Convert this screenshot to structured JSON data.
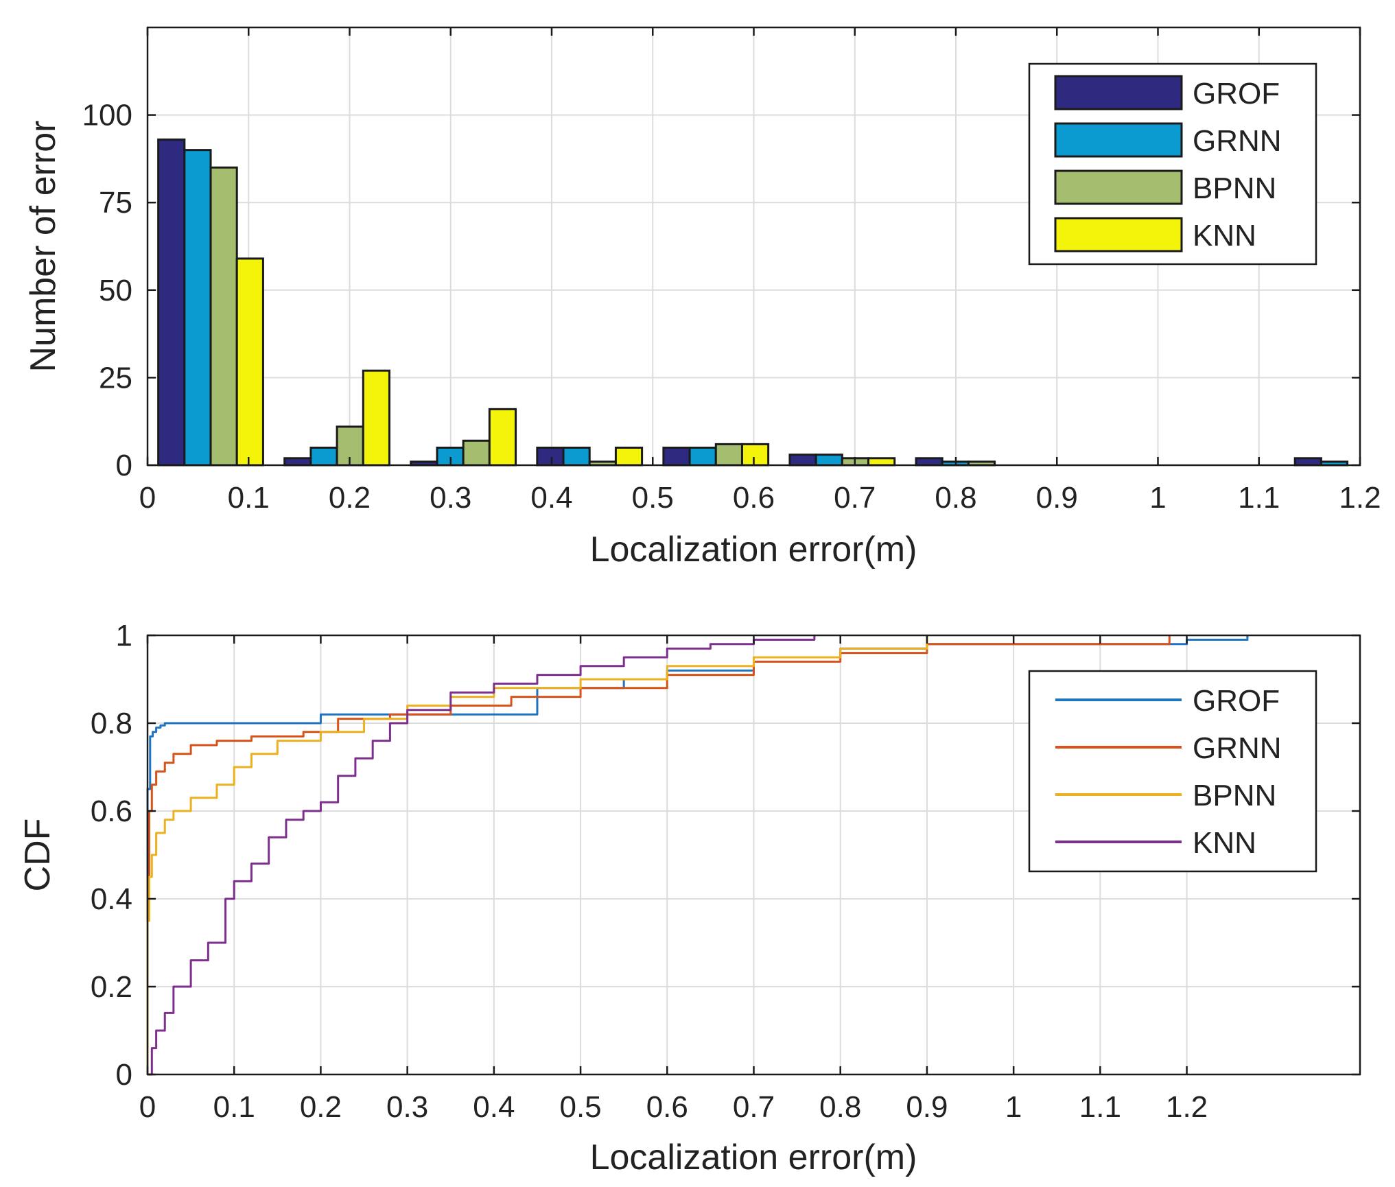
{
  "chart_data": [
    {
      "type": "bar",
      "title": "",
      "xlabel": "Localization error(m)",
      "ylabel": "Number of error",
      "xlim": [
        0,
        1.2
      ],
      "ylim": [
        0,
        125
      ],
      "xticks": [
        "0",
        "0.1",
        "0.2",
        "0.3",
        "0.4",
        "0.5",
        "0.6",
        "0.7",
        "0.8",
        "0.9",
        "1",
        "1.1",
        "1.2"
      ],
      "yticks": [
        "0",
        "25",
        "50",
        "75",
        "100"
      ],
      "grid": true,
      "legend_position": "top-right",
      "bin_centers": [
        0.0625,
        0.1875,
        0.3125,
        0.4375,
        0.5625,
        0.6875,
        0.8125,
        0.9375,
        1.0625,
        1.1875
      ],
      "series": [
        {
          "name": "GROF",
          "color": "#2e2a80",
          "values": [
            93,
            2,
            1,
            5,
            5,
            3,
            2,
            0,
            0,
            2
          ]
        },
        {
          "name": "GRNN",
          "color": "#0b9bd0",
          "values": [
            90,
            5,
            5,
            5,
            5,
            3,
            1,
            0,
            0,
            1
          ]
        },
        {
          "name": "BPNN",
          "color": "#a4bd6e",
          "values": [
            85,
            11,
            7,
            1,
            6,
            2,
            1,
            0,
            0,
            0
          ]
        },
        {
          "name": "KNN",
          "color": "#f4f40a",
          "values": [
            59,
            27,
            16,
            5,
            6,
            2,
            0,
            0,
            0,
            0
          ]
        }
      ]
    },
    {
      "type": "line",
      "title": "",
      "xlabel": "Localization error(m)",
      "ylabel": "CDF",
      "xlim": [
        0,
        1.4
      ],
      "ylim": [
        0,
        1
      ],
      "xticks": [
        "0",
        "0.1",
        "0.2",
        "0.3",
        "0.4",
        "0.5",
        "0.6",
        "0.7",
        "0.8",
        "0.9",
        "1",
        "1.1",
        "1.2"
      ],
      "yticks": [
        "0",
        "0.2",
        "0.4",
        "0.6",
        "0.8",
        "1"
      ],
      "grid": true,
      "legend_position": "top-right",
      "series": [
        {
          "name": "GROF",
          "color": "#1f74bf",
          "x": [
            0,
            0,
            0.003,
            0.006,
            0.01,
            0.015,
            0.02,
            0.2,
            0.2,
            0.45,
            0.45,
            0.55,
            0.55,
            0.6,
            0.6,
            0.7,
            0.7,
            0.8,
            0.8,
            0.9,
            0.9,
            1.2,
            1.2,
            1.27,
            1.27
          ],
          "y": [
            0,
            0.65,
            0.77,
            0.78,
            0.79,
            0.795,
            0.8,
            0.8,
            0.82,
            0.84,
            0.88,
            0.88,
            0.9,
            0.9,
            0.92,
            0.93,
            0.95,
            0.96,
            0.97,
            0.97,
            0.98,
            0.98,
            0.99,
            0.99,
            1.0
          ]
        },
        {
          "name": "GRNN",
          "color": "#d95219",
          "x": [
            0,
            0,
            0.002,
            0.005,
            0.01,
            0.02,
            0.03,
            0.05,
            0.08,
            0.12,
            0.18,
            0.22,
            0.28,
            0.35,
            0.42,
            0.5,
            0.6,
            0.7,
            0.8,
            0.9,
            1.18,
            1.18
          ],
          "y": [
            0,
            0.45,
            0.6,
            0.66,
            0.69,
            0.71,
            0.73,
            0.75,
            0.76,
            0.77,
            0.78,
            0.81,
            0.82,
            0.84,
            0.86,
            0.88,
            0.91,
            0.94,
            0.96,
            0.98,
            0.98,
            1.0
          ]
        },
        {
          "name": "BPNN",
          "color": "#edb120",
          "x": [
            0,
            0,
            0.002,
            0.005,
            0.01,
            0.02,
            0.03,
            0.05,
            0.08,
            0.1,
            0.12,
            0.15,
            0.2,
            0.25,
            0.3,
            0.35,
            0.4,
            0.5,
            0.6,
            0.7,
            0.8,
            0.9
          ],
          "y": [
            0,
            0.35,
            0.45,
            0.5,
            0.55,
            0.58,
            0.6,
            0.63,
            0.66,
            0.7,
            0.73,
            0.76,
            0.78,
            0.81,
            0.84,
            0.86,
            0.88,
            0.9,
            0.93,
            0.95,
            0.97,
            1.0
          ]
        },
        {
          "name": "KNN",
          "color": "#7e2f8e",
          "x": [
            0,
            0.005,
            0.01,
            0.02,
            0.03,
            0.05,
            0.07,
            0.09,
            0.1,
            0.12,
            0.14,
            0.16,
            0.18,
            0.2,
            0.22,
            0.24,
            0.26,
            0.28,
            0.3,
            0.35,
            0.4,
            0.45,
            0.5,
            0.55,
            0.6,
            0.65,
            0.7,
            0.77
          ],
          "y": [
            0,
            0.06,
            0.1,
            0.14,
            0.2,
            0.26,
            0.3,
            0.4,
            0.44,
            0.48,
            0.54,
            0.58,
            0.6,
            0.62,
            0.68,
            0.72,
            0.76,
            0.8,
            0.83,
            0.87,
            0.89,
            0.91,
            0.93,
            0.95,
            0.97,
            0.98,
            0.99,
            1.0
          ]
        }
      ]
    }
  ]
}
